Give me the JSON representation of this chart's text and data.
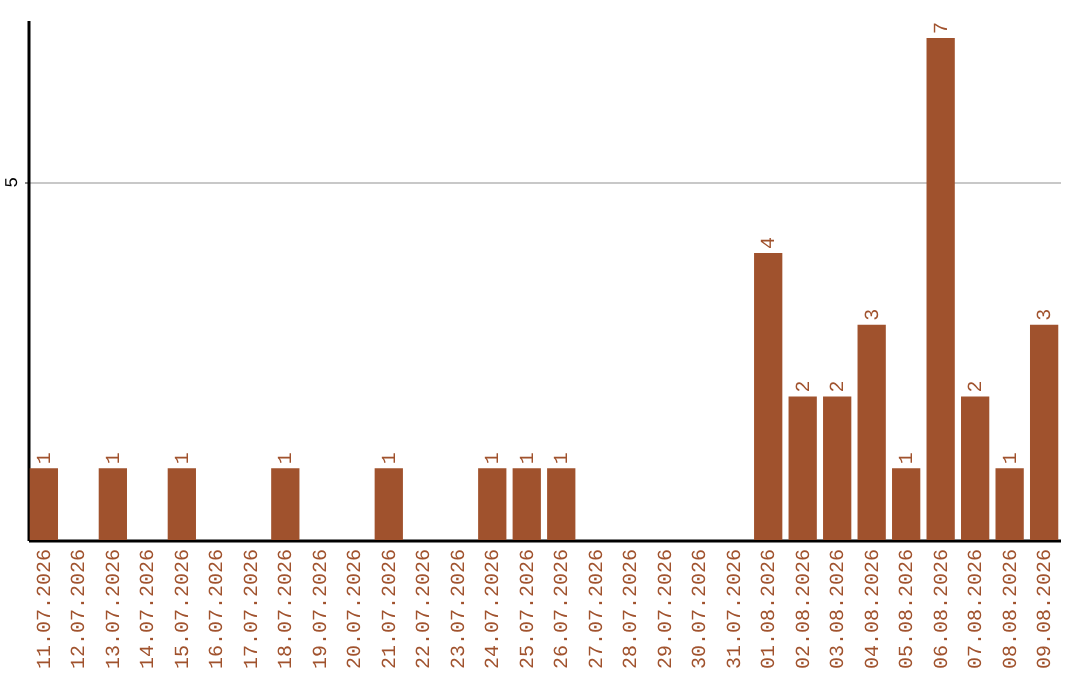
{
  "chart_data": {
    "type": "bar",
    "categories": [
      "11.07.2026",
      "12.07.2026",
      "13.07.2026",
      "14.07.2026",
      "15.07.2026",
      "16.07.2026",
      "17.07.2026",
      "18.07.2026",
      "19.07.2026",
      "20.07.2026",
      "21.07.2026",
      "22.07.2026",
      "23.07.2026",
      "24.07.2026",
      "25.07.2026",
      "26.07.2026",
      "27.07.2026",
      "28.07.2026",
      "29.07.2026",
      "30.07.2026",
      "31.07.2026",
      "01.08.2026",
      "02.08.2026",
      "03.08.2026",
      "04.08.2026",
      "05.08.2026",
      "06.08.2026",
      "07.08.2026",
      "08.08.2026",
      "09.08.2026"
    ],
    "values": [
      1,
      0,
      1,
      0,
      1,
      0,
      0,
      1,
      0,
      0,
      1,
      0,
      0,
      1,
      1,
      1,
      0,
      0,
      0,
      0,
      0,
      4,
      2,
      2,
      3,
      1,
      7,
      2,
      1,
      3
    ],
    "value_labels": [
      "1",
      null,
      "1",
      null,
      "1",
      null,
      null,
      "1",
      null,
      null,
      "1",
      null,
      null,
      "1",
      "1",
      "1",
      null,
      null,
      null,
      null,
      null,
      "4",
      "2",
      "2",
      "3",
      "1",
      "7",
      "2",
      "1",
      "3"
    ],
    "color": "#a0522d",
    "ylim": [
      0,
      7.25
    ],
    "yticks": [
      5
    ],
    "grid": "y"
  }
}
